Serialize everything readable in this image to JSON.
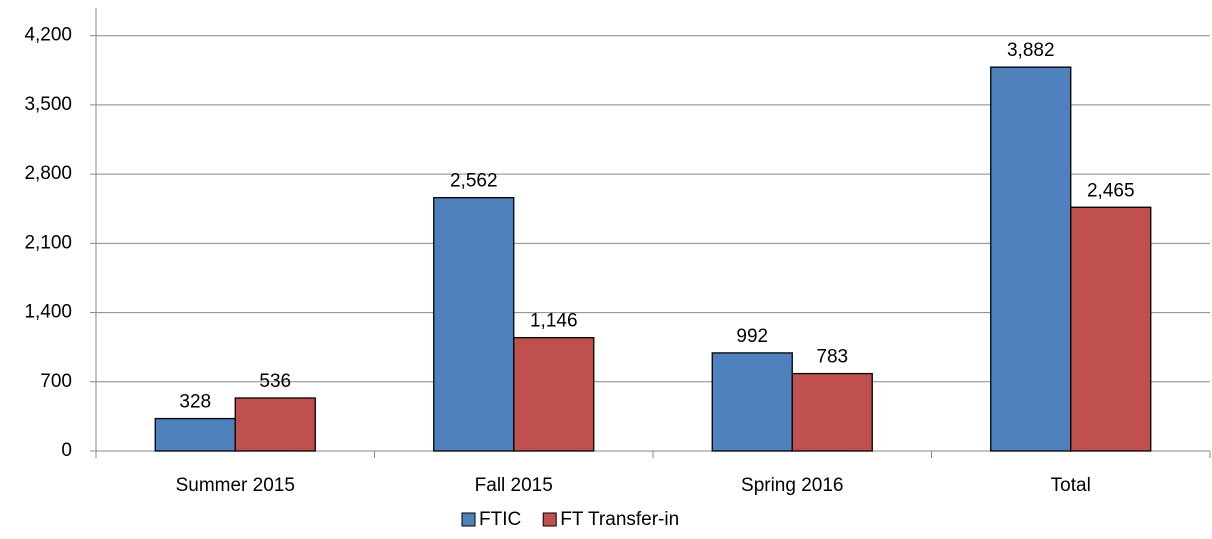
{
  "chart_data": {
    "type": "bar",
    "categories": [
      "Summer 2015",
      "Fall 2015",
      "Spring 2016",
      "Total"
    ],
    "series": [
      {
        "name": "FTIC",
        "color": "#4f81bd",
        "values": [
          328,
          2562,
          992,
          3882
        ],
        "value_labels": [
          "328",
          "2,562",
          "992",
          "3,882"
        ]
      },
      {
        "name": "FT Transfer-in",
        "color": "#c0504d",
        "values": [
          536,
          1146,
          783,
          2465
        ],
        "value_labels": [
          "536",
          "1,146",
          "783",
          "2,465"
        ]
      }
    ],
    "ylim": [
      0,
      4480
    ],
    "yticks": [
      0,
      700,
      {
        "value": 1400,
        "label": "1,400"
      },
      {
        "value": 2100,
        "label": "2,100"
      },
      {
        "value": 2800,
        "label": "2,800"
      },
      {
        "value": 3500,
        "label": "3,500"
      },
      {
        "value": 4200,
        "label": "4,200"
      }
    ],
    "grid": true,
    "legend": "bottom"
  }
}
